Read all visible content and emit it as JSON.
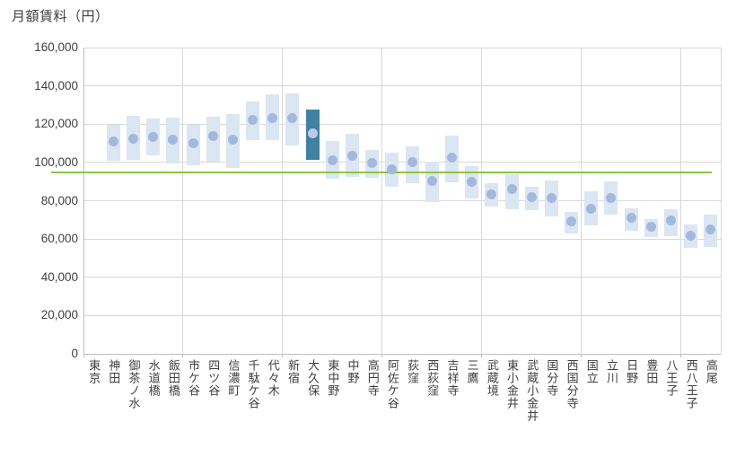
{
  "title": "月額賃料（円）",
  "colors": {
    "bar": "#dbe6f3",
    "bar_highlight": "#4182a0",
    "dot": "#a4b8dd",
    "dot_on_highlight": "#bccbe9",
    "reference_line": "#8cc63f",
    "gridline": "#d9d9d9",
    "axis": "#bfbfbf",
    "text": "#404040"
  },
  "chart_data": {
    "type": "range-bar",
    "title": "月額賃料（円）",
    "xlabel": "",
    "ylabel": "月額賃料（円）",
    "ylim": [
      0,
      160000
    ],
    "ytick_step": 20000,
    "grid": true,
    "legend": "none",
    "y_ticks": [
      {
        "value": 0,
        "label": "0"
      },
      {
        "value": 20000,
        "label": "20,000"
      },
      {
        "value": 40000,
        "label": "40,000"
      },
      {
        "value": 60000,
        "label": "60,000"
      },
      {
        "value": 80000,
        "label": "80,000"
      },
      {
        "value": 100000,
        "label": "100,000"
      },
      {
        "value": 120000,
        "label": "120,000"
      },
      {
        "value": 140000,
        "label": "140,000"
      },
      {
        "value": 160000,
        "label": "160,000"
      }
    ],
    "reference_line": {
      "value": 94800,
      "color": "#8cc63f"
    },
    "highlight_station": "大久保",
    "series_note": "bar = rent range (min-max), dot = typical rent",
    "stations": [
      {
        "name": "東京",
        "min": null,
        "mid": null,
        "max": null,
        "highlight": false
      },
      {
        "name": "神田",
        "min": 101000,
        "mid": 111000,
        "max": 119500,
        "highlight": false
      },
      {
        "name": "御茶ノ水",
        "min": 101500,
        "mid": 112500,
        "max": 124500,
        "highlight": false
      },
      {
        "name": "水道橋",
        "min": 103500,
        "mid": 113500,
        "max": 123000,
        "highlight": false
      },
      {
        "name": "飯田橋",
        "min": 99500,
        "mid": 112000,
        "max": 123500,
        "highlight": false
      },
      {
        "name": "市ケ谷",
        "min": 98500,
        "mid": 110000,
        "max": 119500,
        "highlight": false
      },
      {
        "name": "四ツ谷",
        "min": 100500,
        "mid": 114000,
        "max": 124000,
        "highlight": false
      },
      {
        "name": "信濃町",
        "min": 97000,
        "mid": 112000,
        "max": 125500,
        "highlight": false
      },
      {
        "name": "千駄ケ谷",
        "min": 111500,
        "mid": 122000,
        "max": 132000,
        "highlight": false
      },
      {
        "name": "代々木",
        "min": 111500,
        "mid": 123000,
        "max": 135500,
        "highlight": false
      },
      {
        "name": "新宿",
        "min": 109000,
        "mid": 123000,
        "max": 136000,
        "highlight": false
      },
      {
        "name": "大久保",
        "min": 101500,
        "mid": 115000,
        "max": 127500,
        "highlight": true
      },
      {
        "name": "東中野",
        "min": 91500,
        "mid": 101000,
        "max": 111000,
        "highlight": false
      },
      {
        "name": "中野",
        "min": 92500,
        "mid": 103500,
        "max": 115000,
        "highlight": false
      },
      {
        "name": "高円寺",
        "min": 92000,
        "mid": 99500,
        "max": 106500,
        "highlight": false
      },
      {
        "name": "阿佐ケ谷",
        "min": 87500,
        "mid": 96500,
        "max": 105000,
        "highlight": false
      },
      {
        "name": "荻窪",
        "min": 89000,
        "mid": 100000,
        "max": 108500,
        "highlight": false
      },
      {
        "name": "西荻窪",
        "min": 79500,
        "mid": 90500,
        "max": 100500,
        "highlight": false
      },
      {
        "name": "吉祥寺",
        "min": 89500,
        "mid": 102500,
        "max": 114000,
        "highlight": false
      },
      {
        "name": "三鷹",
        "min": 81000,
        "mid": 90000,
        "max": 98000,
        "highlight": false
      },
      {
        "name": "武蔵境",
        "min": 77000,
        "mid": 83500,
        "max": 89000,
        "highlight": false
      },
      {
        "name": "東小金井",
        "min": 75500,
        "mid": 86000,
        "max": 94000,
        "highlight": false
      },
      {
        "name": "武蔵小金井",
        "min": 75000,
        "mid": 82000,
        "max": 87500,
        "highlight": false
      },
      {
        "name": "国分寺",
        "min": 72000,
        "mid": 81500,
        "max": 90500,
        "highlight": false
      },
      {
        "name": "西国分寺",
        "min": 63000,
        "mid": 69000,
        "max": 74000,
        "highlight": false
      },
      {
        "name": "国立",
        "min": 67000,
        "mid": 76000,
        "max": 85000,
        "highlight": false
      },
      {
        "name": "立川",
        "min": 72500,
        "mid": 81500,
        "max": 90000,
        "highlight": false
      },
      {
        "name": "日野",
        "min": 64500,
        "mid": 71000,
        "max": 76000,
        "highlight": false
      },
      {
        "name": "豊田",
        "min": 61000,
        "mid": 66500,
        "max": 70500,
        "highlight": false
      },
      {
        "name": "八王子",
        "min": 61500,
        "mid": 69500,
        "max": 75500,
        "highlight": false
      },
      {
        "name": "西八王子",
        "min": 55500,
        "mid": 61500,
        "max": 67500,
        "highlight": false
      },
      {
        "name": "高尾",
        "min": 56000,
        "mid": 65000,
        "max": 72500,
        "highlight": false
      }
    ]
  }
}
